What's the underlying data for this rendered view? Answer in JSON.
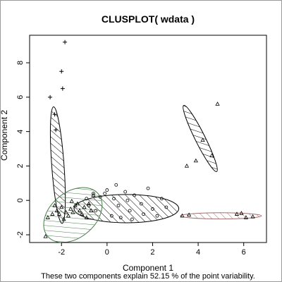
{
  "chart_data": {
    "type": "scatter",
    "subtype": "clusplot",
    "title": "CLUSPLOT( wdata )",
    "xlabel": "Component 1",
    "ylabel": "Component 2",
    "subtitle": "These two components explain 52.15 % of the point variability.",
    "xlim": [
      -3.4,
      7.0
    ],
    "ylim": [
      -2.45,
      9.6
    ],
    "x_ticks": [
      -2,
      0,
      2,
      4,
      6
    ],
    "y_ticks": [
      -2,
      0,
      2,
      4,
      6,
      8
    ],
    "grid": false,
    "legend": "none",
    "clusters": [
      {
        "id": 1,
        "shading": "hatched",
        "color": "#000000",
        "hatch_angle": 45,
        "ellipse": {
          "center": [
            -2.16,
            2.05
          ],
          "rx": 0.27,
          "ry": 3.4,
          "angle_deg": 4.2
        },
        "marker": "plus",
        "points": [
          [
            -2.5,
            6.0
          ],
          [
            -1.85,
            9.2
          ],
          [
            -2.25,
            4.1
          ],
          [
            -2.3,
            5.0
          ],
          [
            -2.0,
            7.5
          ],
          [
            -1.95,
            6.5
          ]
        ]
      },
      {
        "id": 2,
        "shading": "hatched",
        "color": "#000000",
        "hatch_angle": 45,
        "ellipse": {
          "center": [
            4.09,
            3.6
          ],
          "rx": 0.22,
          "ry": 2.15,
          "angle_deg": 26.5
        },
        "marker": "triangle",
        "points": [
          [
            3.5,
            2.0
          ],
          [
            4.85,
            5.6
          ],
          [
            4.6,
            2.6
          ],
          [
            4.2,
            3.5
          ],
          [
            3.9,
            2.3
          ]
        ]
      },
      {
        "id": 3,
        "shading": "hatched",
        "color": "#000000",
        "hatch_angle": 45,
        "ellipse": {
          "center": [
            0.85,
            -0.48
          ],
          "rx": 2.3,
          "ry": 0.82,
          "angle_deg": 0
        },
        "marker": "circle",
        "points": [
          [
            -0.6,
            0.4
          ],
          [
            -0.3,
            0.2
          ],
          [
            0.0,
            0.6
          ],
          [
            0.3,
            0.1
          ],
          [
            0.5,
            -0.3
          ],
          [
            0.8,
            0.5
          ],
          [
            1.0,
            -0.6
          ],
          [
            1.2,
            0.3
          ],
          [
            1.5,
            -0.2
          ],
          [
            1.8,
            0.7
          ],
          [
            2.0,
            -0.5
          ],
          [
            2.4,
            0.1
          ],
          [
            -0.8,
            -0.3
          ],
          [
            -0.5,
            -0.6
          ],
          [
            0.2,
            -0.9
          ],
          [
            0.6,
            -1.0
          ],
          [
            1.1,
            -1.1
          ],
          [
            1.6,
            -0.8
          ],
          [
            2.2,
            -0.9
          ],
          [
            -0.1,
            0.4
          ],
          [
            0.4,
            0.9
          ],
          [
            2.6,
            -0.4
          ],
          [
            -0.9,
            0.1
          ],
          [
            0.9,
            0.0
          ]
        ]
      },
      {
        "id": 4,
        "shading": "hatched",
        "color": "#4a7d4a",
        "hatch_angle": 45,
        "ellipse": {
          "center": [
            -1.5,
            -0.85
          ],
          "rx": 1.45,
          "ry": 1.32,
          "angle_deg": 40
        },
        "marker": "triangle",
        "points": [
          [
            -2.6,
            -1.0
          ],
          [
            -2.4,
            -0.8
          ],
          [
            -2.2,
            -0.6
          ],
          [
            -2.0,
            -0.4
          ],
          [
            -1.8,
            -0.7
          ],
          [
            -1.6,
            -0.5
          ],
          [
            -1.4,
            -0.3
          ],
          [
            -1.2,
            -0.6
          ],
          [
            -1.0,
            -0.4
          ],
          [
            -0.8,
            -0.2
          ],
          [
            -1.7,
            -0.9
          ],
          [
            -1.9,
            -1.1
          ],
          [
            -2.1,
            -0.8
          ],
          [
            -1.5,
            -0.7
          ],
          [
            -1.3,
            -0.2
          ],
          [
            -0.6,
            0.3
          ],
          [
            -2.7,
            -2.1
          ],
          [
            -0.9,
            -1.0
          ],
          [
            -1.1,
            -0.8
          ],
          [
            -2.3,
            -0.3
          ],
          [
            -0.7,
            -0.6
          ],
          [
            -1.55,
            -0.05
          ]
        ]
      },
      {
        "id": 5,
        "shading": "hatched",
        "color": "#a07070",
        "hatch_angle": 45,
        "ellipse": {
          "center": [
            5.0,
            -0.9
          ],
          "rx": 1.78,
          "ry": 0.18,
          "angle_deg": 0
        },
        "marker": "triangle",
        "points": [
          [
            3.3,
            -0.9
          ],
          [
            3.6,
            -0.85
          ],
          [
            5.7,
            -0.8
          ],
          [
            6.1,
            -1.0
          ],
          [
            6.4,
            -0.95
          ],
          [
            5.9,
            -0.75
          ]
        ]
      }
    ]
  }
}
